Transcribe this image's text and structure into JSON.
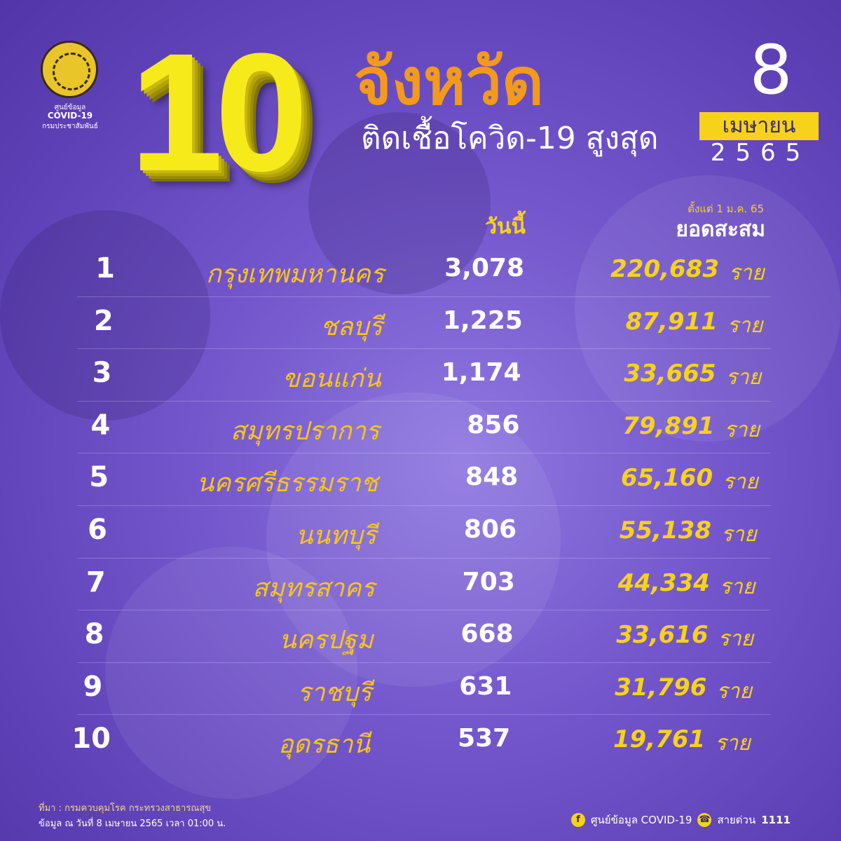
{
  "logo": {
    "line1": "ศูนย์ข้อมูล",
    "line2": "COVID-19",
    "line3": "กรมประชาสัมพันธ์"
  },
  "title": {
    "number": "10",
    "heading": "จังหวัด",
    "subtitle": "ติดเชื้อโควิด-19 สูงสุด"
  },
  "date": {
    "day": "8",
    "month": "เมษายน",
    "year": "2565"
  },
  "columns": {
    "today": "วันนี้",
    "since": "ตั้งแต่ 1 ม.ค. 65",
    "cumulative": "ยอดสะสม"
  },
  "rows": [
    {
      "rank": "1",
      "province": "กรุงเทพมหานคร",
      "today": "3,078",
      "cumulative": "220,683",
      "unit": "ราย"
    },
    {
      "rank": "2",
      "province": "ชลบุรี",
      "today": "1,225",
      "cumulative": "87,911",
      "unit": "ราย"
    },
    {
      "rank": "3",
      "province": "ขอนแก่น",
      "today": "1,174",
      "cumulative": "33,665",
      "unit": "ราย"
    },
    {
      "rank": "4",
      "province": "สมุทรปราการ",
      "today": "856",
      "cumulative": "79,891",
      "unit": "ราย"
    },
    {
      "rank": "5",
      "province": "นครศรีธรรมราช",
      "today": "848",
      "cumulative": "65,160",
      "unit": "ราย"
    },
    {
      "rank": "6",
      "province": "นนทบุรี",
      "today": "806",
      "cumulative": "55,138",
      "unit": "ราย"
    },
    {
      "rank": "7",
      "province": "สมุทรสาคร",
      "today": "703",
      "cumulative": "44,334",
      "unit": "ราย"
    },
    {
      "rank": "8",
      "province": "นครปฐม",
      "today": "668",
      "cumulative": "33,616",
      "unit": "ราย"
    },
    {
      "rank": "9",
      "province": "ราชบุรี",
      "today": "631",
      "cumulative": "31,796",
      "unit": "ราย"
    },
    {
      "rank": "10",
      "province": "อุดรธานี",
      "today": "537",
      "cumulative": "19,761",
      "unit": "ราย"
    }
  ],
  "footer": {
    "source": "ที่มา : กรมควบคุมโรค กระทรวงสาธารณสุข",
    "updated": "ข้อมูล ณ วันที่ 8 เมษายน 2565 เวลา 01:00 น.",
    "facebook": "ศูนย์ข้อมูล COVID-19",
    "hotline_label": "สายด่วน",
    "hotline": "1111"
  },
  "colors": {
    "background": "#7457cc",
    "yellow": "#f7d21b",
    "orange": "#f39a1a"
  }
}
